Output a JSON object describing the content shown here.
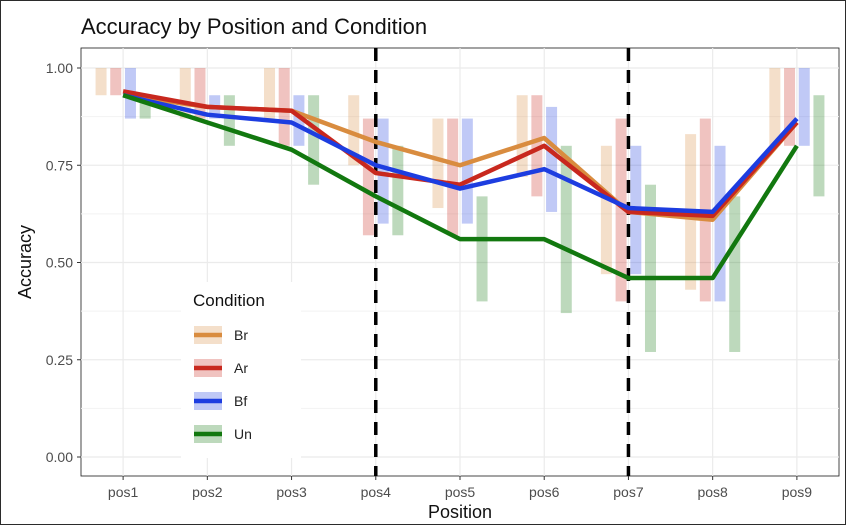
{
  "chart_data": {
    "type": "line",
    "title": "Accuracy by Position and Condition",
    "xlabel": "Position",
    "ylabel": "Accuracy",
    "categories": [
      "pos1",
      "pos2",
      "pos3",
      "pos4",
      "pos5",
      "pos6",
      "pos7",
      "pos8",
      "pos9"
    ],
    "ylim": [
      0,
      1
    ],
    "yticks": [
      0.0,
      0.25,
      0.5,
      0.75,
      1.0
    ],
    "ytick_labels": [
      "0.00",
      "0.25",
      "0.50",
      "0.75",
      "1.00"
    ],
    "grid": true,
    "vlines_between": [
      3.5,
      6.5
    ],
    "legend": {
      "title": "Condition",
      "position": "bottom-left inside"
    },
    "series": [
      {
        "name": "Br",
        "color": "#d98c3f",
        "values": [
          0.93,
          0.9,
          0.89,
          0.81,
          0.75,
          0.82,
          0.63,
          0.61,
          0.86
        ],
        "lower": [
          0.93,
          0.87,
          0.87,
          0.75,
          0.64,
          0.72,
          0.47,
          0.43,
          0.8
        ],
        "upper": [
          1.0,
          1.0,
          1.0,
          0.93,
          0.87,
          0.93,
          0.8,
          0.83,
          1.0
        ]
      },
      {
        "name": "Ar",
        "color": "#c8281e",
        "values": [
          0.94,
          0.9,
          0.89,
          0.73,
          0.7,
          0.8,
          0.63,
          0.62,
          0.86
        ],
        "lower": [
          0.93,
          0.87,
          0.8,
          0.57,
          0.57,
          0.67,
          0.4,
          0.4,
          0.8
        ],
        "upper": [
          1.0,
          1.0,
          1.0,
          0.87,
          0.87,
          0.93,
          0.87,
          0.87,
          1.0
        ]
      },
      {
        "name": "Bf",
        "color": "#1d3de0",
        "values": [
          0.93,
          0.88,
          0.86,
          0.75,
          0.69,
          0.74,
          0.64,
          0.63,
          0.87
        ],
        "lower": [
          0.87,
          0.87,
          0.8,
          0.6,
          0.6,
          0.63,
          0.47,
          0.4,
          0.8
        ],
        "upper": [
          1.0,
          0.93,
          0.93,
          0.87,
          0.87,
          0.9,
          0.8,
          0.8,
          1.0
        ]
      },
      {
        "name": "Un",
        "color": "#12780f",
        "values": [
          0.93,
          0.86,
          0.79,
          0.67,
          0.56,
          0.56,
          0.46,
          0.46,
          0.8
        ],
        "lower": [
          0.87,
          0.8,
          0.7,
          0.57,
          0.4,
          0.37,
          0.27,
          0.27,
          0.67
        ],
        "upper": [
          0.93,
          0.93,
          0.93,
          0.8,
          0.67,
          0.8,
          0.7,
          0.67,
          0.93
        ]
      }
    ]
  }
}
